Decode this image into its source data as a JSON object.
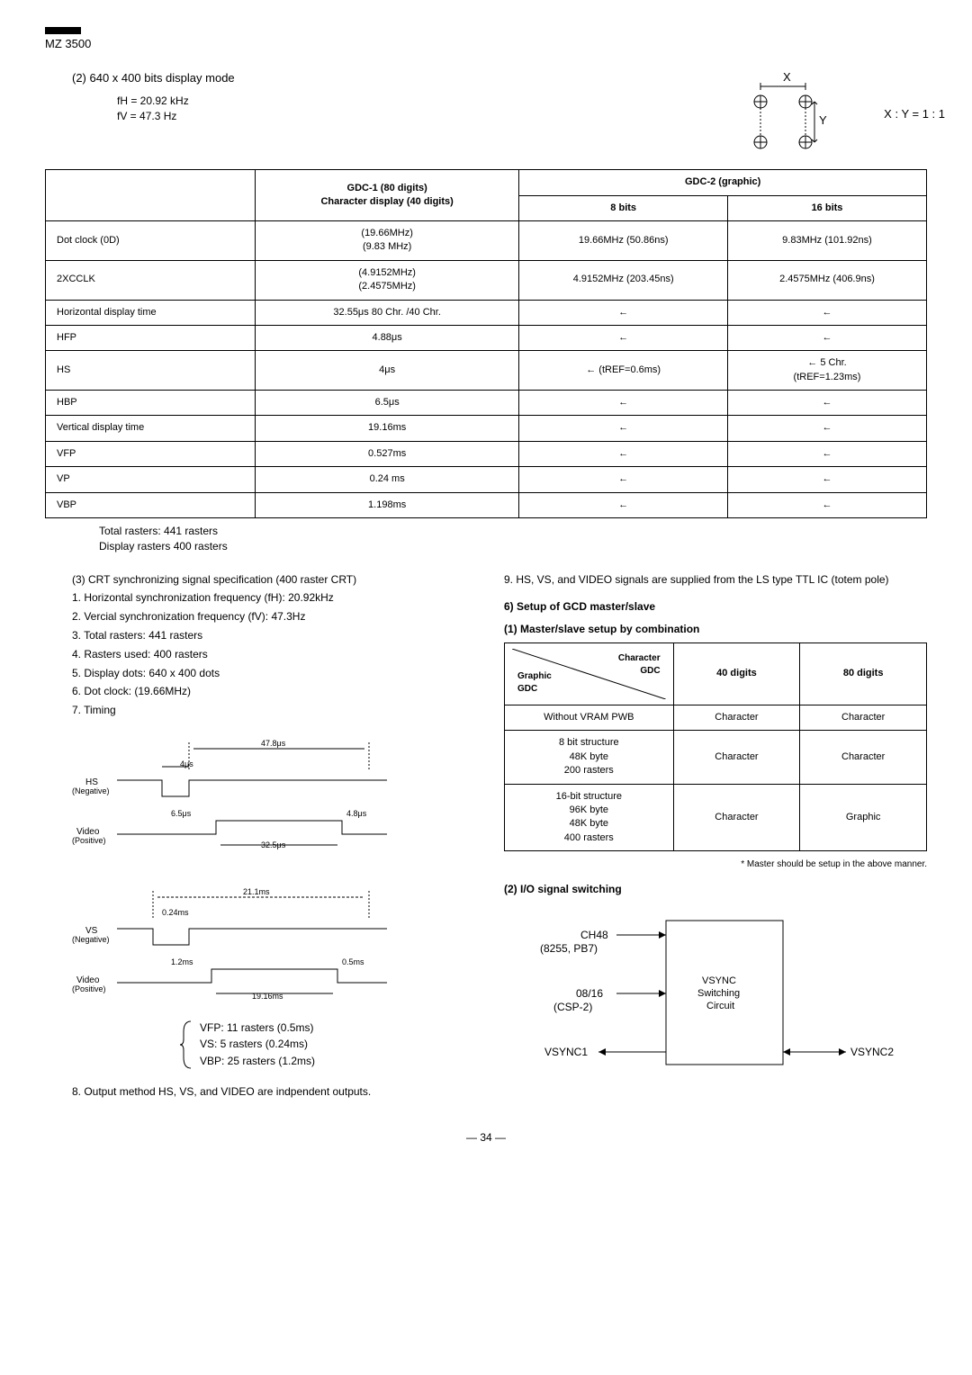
{
  "header": {
    "model": "MZ 3500"
  },
  "section2": {
    "title": "(2) 640 x 400 bits display mode",
    "fH": "fH = 20.92 kHz",
    "fV": "fV = 47.3   Hz",
    "ratio": "X : Y = 1 : 1",
    "xLabel": "X",
    "yLabel": "Y"
  },
  "mainTable": {
    "headers": {
      "col1": "",
      "col2a": "GDC-1 (80 digits)",
      "col2b": "Character display (40 digits)",
      "col3": "GDC-2 (graphic)",
      "col3a": "8 bits",
      "col3b": "16 bits"
    },
    "rows": [
      {
        "label": "Dot clock (0D)",
        "c2": "(19.66MHz)\n(9.83  MHz)",
        "c3": "19.66MHz (50.86ns)",
        "c4": "9.83MHz (101.92ns)"
      },
      {
        "label": "2XCCLK",
        "c2": "(4.9152MHz)\n(2.4575MHz)",
        "c3": "4.9152MHz (203.45ns)",
        "c4": "2.4575MHz (406.9ns)"
      },
      {
        "label": "Horizontal display time",
        "c2": "32.55μs  80 Chr. /40 Chr.",
        "c3": "←",
        "c4": "←"
      },
      {
        "label": "HFP",
        "c2": "4.88μs",
        "c3": "←",
        "c4": "←"
      },
      {
        "label": "HS",
        "c2": "4μs",
        "c3": "←     (tREF=0.6ms)",
        "c4": "←     5 Chr.\n(tREF=1.23ms)"
      },
      {
        "label": "HBP",
        "c2": "6.5μs",
        "c3": "←",
        "c4": "←"
      },
      {
        "label": "Vertical display time",
        "c2": "19.16ms",
        "c3": "←",
        "c4": "←"
      },
      {
        "label": "VFP",
        "c2": "0.527ms",
        "c3": "←",
        "c4": "←"
      },
      {
        "label": "VP",
        "c2": "0.24  ms",
        "c3": "←",
        "c4": "←"
      },
      {
        "label": "VBP",
        "c2": "1.198ms",
        "c3": "←",
        "c4": "←"
      }
    ],
    "notes": {
      "n1": "Total rasters: 441 rasters",
      "n2": "Display rasters  400 rasters"
    }
  },
  "leftCol": {
    "item3": "(3) CRT synchronizing signal specification (400 raster CRT)",
    "li1": "1. Horizontal synchronization frequency (fH): 20.92kHz",
    "li2": "2. Vercial synchronization frequency (fV): 47.3Hz",
    "li3": "3. Total rasters: 441 rasters",
    "li4": "4. Rasters used: 400 rasters",
    "li5": "5. Display dots: 640 x 400 dots",
    "li6": "6. Dot clock: (19.66MHz)",
    "li7": "7. Timing",
    "timing1": {
      "hs": "HS\n(Negative)",
      "video": "Video\n(Positive)",
      "t478": "47.8μs",
      "t4": "4μs",
      "t65": "6.5μs",
      "t48": "4.8μs",
      "t325": "32.5μs"
    },
    "timing2": {
      "vs": "VS\n(Negative)",
      "video": "Video\n(Positive)",
      "t211": "21.1ms",
      "t024": "0.24ms",
      "t12": "1.2ms",
      "t05": "0.5ms",
      "t1916": "19.16ms"
    },
    "brace": {
      "l1": "VFP: 11 rasters (0.5ms)",
      "l2": "VS:    5 rasters (0.24ms)",
      "l3": "VBP: 25 rasters (1.2ms)"
    },
    "item8": "8. Output method   HS, VS, and VIDEO are indpendent outputs."
  },
  "rightCol": {
    "item9": "9. HS, VS, and VIDEO signals are supplied from the LS type TTL IC (totem pole)",
    "sec6": "6) Setup of GCD master/slave",
    "sub1": "(1) Master/slave setup by combination",
    "smallTable": {
      "diagTop": "Character\nGDC",
      "diagBot": "Graphic\nGDC",
      "h40": "40 digits",
      "h80": "80 digits",
      "r1": {
        "label": "Without VRAM PWB",
        "c1": "Character",
        "c2": "Character"
      },
      "r2": {
        "label": "8 bit structure\n48K byte\n200 rasters",
        "c1": "Character",
        "c2": "Character"
      },
      "r3": {
        "label": "16-bit structure\n96K byte\n48K byte\n400 rasters",
        "c1": "Character",
        "c2": "Graphic"
      }
    },
    "footnote": "* Master should be setup in the above manner.",
    "sub2": "(2) I/O signal switching",
    "block": {
      "ch48": "CH48",
      "ch48sub": "(8255, PB7)",
      "o816": "08/16",
      "o816sub": "(CSP-2)",
      "box": "VSYNC\nSwitching\nCircuit",
      "vsync1": "VSYNC1",
      "vsync2": "VSYNC2"
    }
  },
  "pageNum": "— 34 —"
}
